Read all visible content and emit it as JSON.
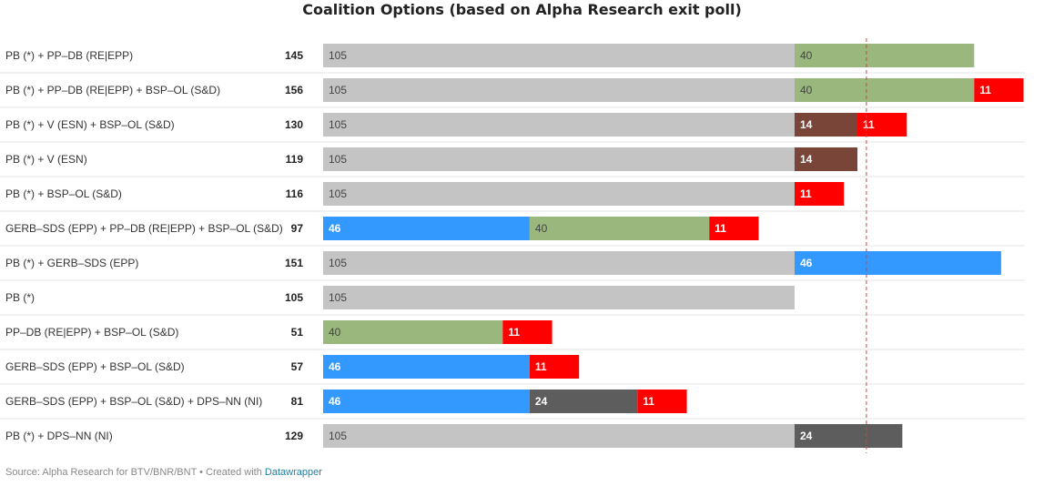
{
  "title": "Coalition Options (based on Alpha Research exit poll)",
  "footer": {
    "source": "Source: Alpha Research for BTV/BNR/BNT • Created with ",
    "link": "Datawrapper"
  },
  "colors": {
    "PB": "#c4c4c4",
    "PP-DB": "#9ab87d",
    "BSP": "#ff0000",
    "V": "#7a4539",
    "GERB": "#3399ff",
    "DPS": "#5d5d5d",
    "threshold_line": "#cc4444"
  },
  "chart_data": {
    "type": "bar",
    "orientation": "horizontal",
    "stacked": true,
    "title": "Coalition Options (based on Alpha Research exit poll)",
    "xlim": [
      0,
      240
    ],
    "reference_line": 121,
    "grid": false,
    "rows": [
      {
        "label": "PB (*) + PP–DB (RE|EPP)",
        "total": "145",
        "segments": [
          {
            "party": "PB",
            "value": 105
          },
          {
            "party": "PP-DB",
            "value": 40
          }
        ]
      },
      {
        "label": "PB (*) + PP–DB (RE|EPP) + BSP–OL (S&D)",
        "total": "156",
        "segments": [
          {
            "party": "PB",
            "value": 105
          },
          {
            "party": "PP-DB",
            "value": 40
          },
          {
            "party": "BSP",
            "value": 11
          }
        ]
      },
      {
        "label": "PB (*) + V (ESN) + BSP–OL (S&D)",
        "total": "130",
        "segments": [
          {
            "party": "PB",
            "value": 105
          },
          {
            "party": "V",
            "value": 14
          },
          {
            "party": "BSP",
            "value": 11
          }
        ]
      },
      {
        "label": "PB (*) + V (ESN)",
        "total": "119",
        "segments": [
          {
            "party": "PB",
            "value": 105
          },
          {
            "party": "V",
            "value": 14
          }
        ]
      },
      {
        "label": "PB (*) + BSP–OL (S&D)",
        "total": "116",
        "segments": [
          {
            "party": "PB",
            "value": 105
          },
          {
            "party": "BSP",
            "value": 11
          }
        ]
      },
      {
        "label": "GERB–SDS (EPP) + PP–DB (RE|EPP) + BSP–OL (S&D)",
        "total": "97",
        "segments": [
          {
            "party": "GERB",
            "value": 46
          },
          {
            "party": "PP-DB",
            "value": 40
          },
          {
            "party": "BSP",
            "value": 11
          }
        ]
      },
      {
        "label": "PB (*) + GERB–SDS (EPP)",
        "total": "151",
        "segments": [
          {
            "party": "PB",
            "value": 105
          },
          {
            "party": "GERB",
            "value": 46
          }
        ]
      },
      {
        "label": "PB (*)",
        "total": "105",
        "segments": [
          {
            "party": "PB",
            "value": 105
          }
        ]
      },
      {
        "label": "PP–DB (RE|EPP) + BSP–OL (S&D)",
        "total": "51",
        "segments": [
          {
            "party": "PP-DB",
            "value": 40
          },
          {
            "party": "BSP",
            "value": 11
          }
        ]
      },
      {
        "label": "GERB–SDS (EPP) + BSP–OL (S&D)",
        "total": "57",
        "segments": [
          {
            "party": "GERB",
            "value": 46
          },
          {
            "party": "BSP",
            "value": 11
          }
        ]
      },
      {
        "label": "GERB–SDS (EPP) + BSP–OL (S&D) + DPS–NN (NI)",
        "total": "81",
        "segments": [
          {
            "party": "GERB",
            "value": 46
          },
          {
            "party": "DPS",
            "value": 24
          },
          {
            "party": "BSP",
            "value": 11
          }
        ]
      },
      {
        "label": "PB (*) + DPS–NN (NI)",
        "total": "129",
        "segments": [
          {
            "party": "PB",
            "value": 105
          },
          {
            "party": "DPS",
            "value": 24
          }
        ]
      }
    ]
  }
}
